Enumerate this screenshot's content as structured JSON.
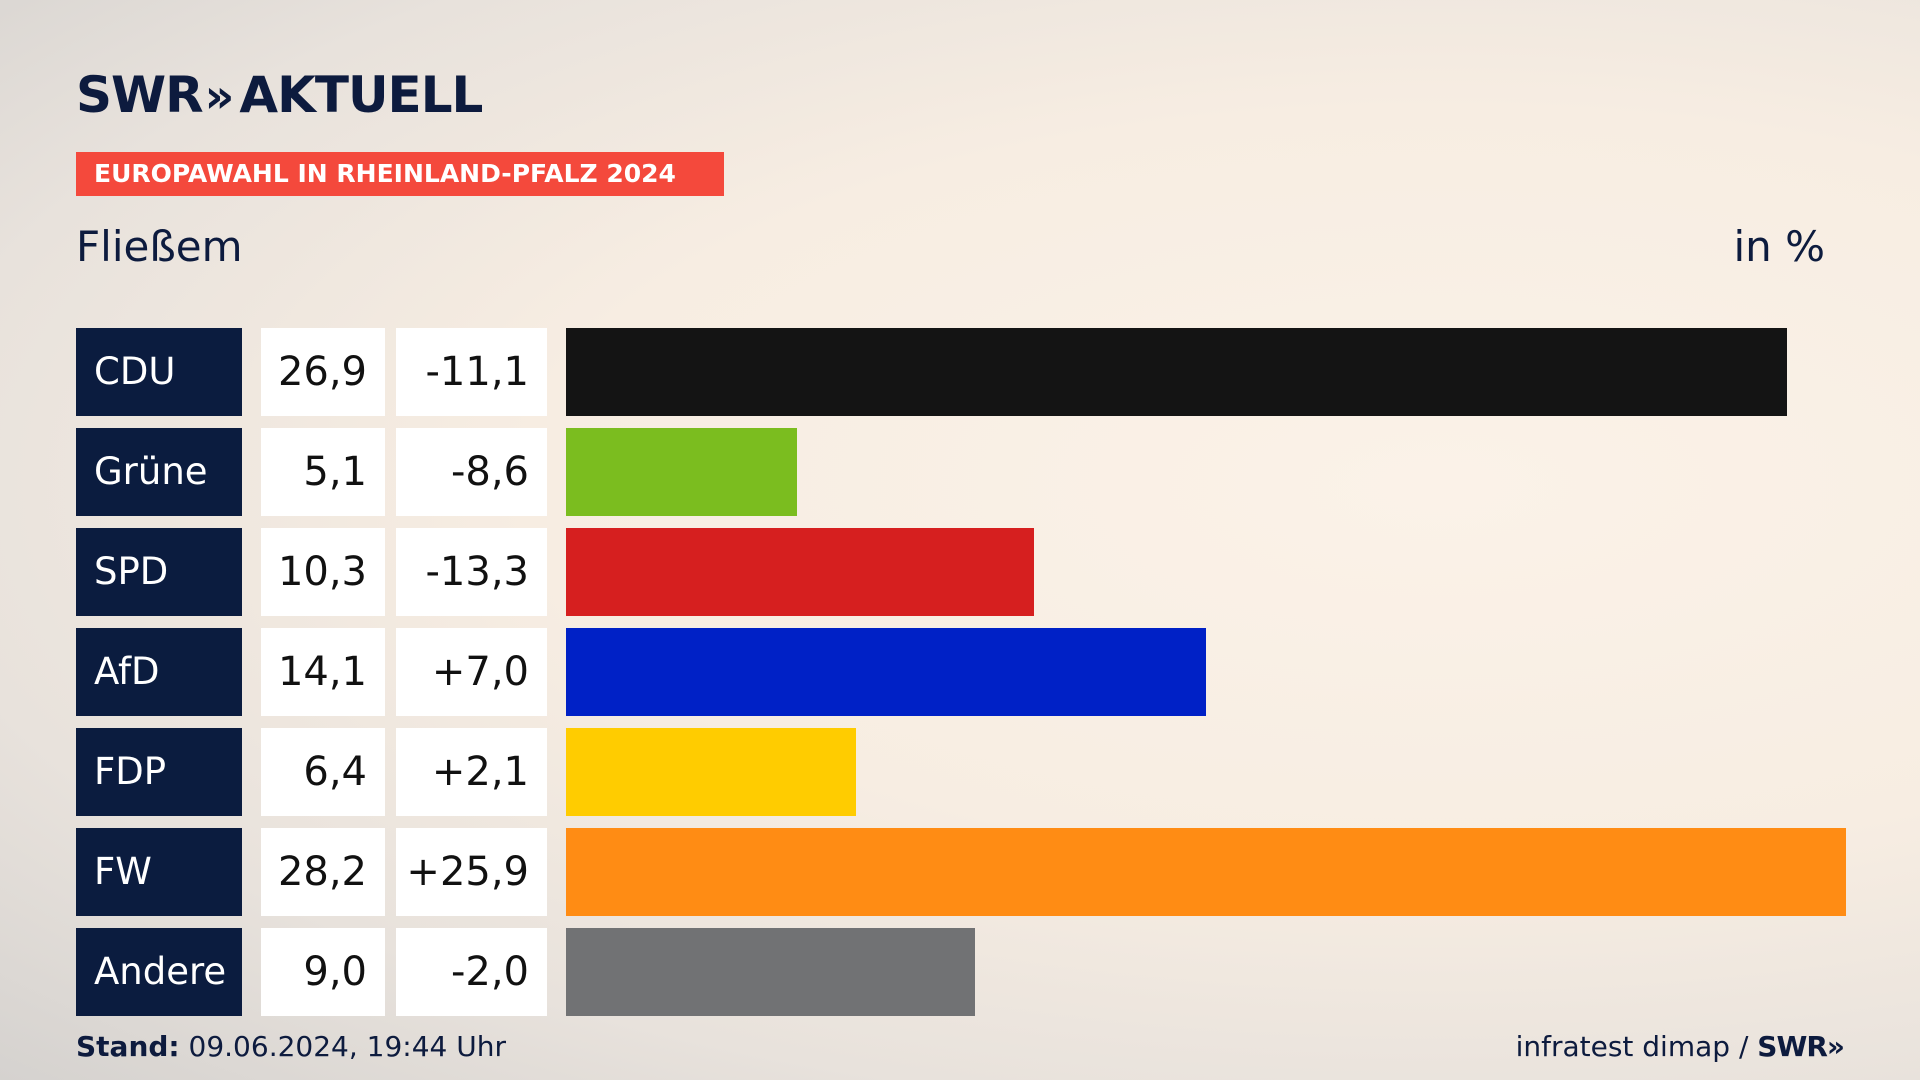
{
  "header": {
    "logo_main": "SWR",
    "logo_chevron": "»",
    "logo_suffix": "AKTUELL",
    "banner": "EUROPAWAHL IN RHEINLAND-PFALZ 2024",
    "subtitle": "Fließem",
    "unit": "in %"
  },
  "chart_data": {
    "type": "bar",
    "orientation": "horizontal",
    "categories": [
      "CDU",
      "Grüne",
      "SPD",
      "AfD",
      "FDP",
      "FW",
      "Andere"
    ],
    "values": [
      26.9,
      5.1,
      10.3,
      14.1,
      6.4,
      28.2,
      9.0
    ],
    "value_labels": [
      "26,9",
      "5,1",
      "10,3",
      "14,1",
      "6,4",
      "28,2",
      "9,0"
    ],
    "diff_labels": [
      "-11,1",
      "-8,6",
      "-13,3",
      "+7,0",
      "+2,1",
      "+25,9",
      "-2,0"
    ],
    "colors": [
      "#141414",
      "#7bbd1f",
      "#d61f1f",
      "#0021c6",
      "#ffcc00",
      "#ff8c14",
      "#717274"
    ],
    "xlim": [
      0,
      28.2
    ]
  },
  "footer": {
    "stand_label": "Stand:",
    "stand_value": "09.06.2024, 19:44 Uhr",
    "source": "infratest dimap /",
    "source_logo": "SWR»"
  }
}
